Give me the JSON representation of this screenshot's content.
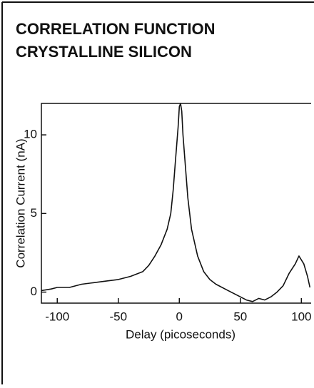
{
  "chart_data": {
    "type": "line",
    "title": [
      "CORRELATION FUNCTION",
      "CRYSTALLINE SILICON"
    ],
    "x_label": "Delay (picoseconds)",
    "y_label": "Correlation Current (nA)",
    "x": [
      -113,
      -105,
      -100,
      -90,
      -80,
      -70,
      -60,
      -50,
      -40,
      -30,
      -25,
      -20,
      -15,
      -10,
      -7,
      -5,
      -3,
      -1,
      0,
      1,
      2,
      3,
      5,
      7,
      10,
      15,
      20,
      25,
      30,
      40,
      50,
      55,
      60,
      65,
      70,
      75,
      80,
      85,
      90,
      95,
      98,
      102,
      105,
      107
    ],
    "series": [
      {
        "color": "#111111",
        "values": [
          0.1,
          0.2,
          0.3,
          0.3,
          0.5,
          0.6,
          0.7,
          0.8,
          1.0,
          1.3,
          1.7,
          2.3,
          3.0,
          4.0,
          5.0,
          6.5,
          8.5,
          10.5,
          11.8,
          12.0,
          11.5,
          10.0,
          8.0,
          6.0,
          4.0,
          2.3,
          1.3,
          0.8,
          0.5,
          0.1,
          -0.3,
          -0.5,
          -0.6,
          -0.4,
          -0.5,
          -0.3,
          0.0,
          0.4,
          1.2,
          1.8,
          2.3,
          1.8,
          1.0,
          0.3
        ]
      }
    ],
    "xlim": [
      -113,
      108
    ],
    "ylim": [
      -0.7,
      12.0
    ],
    "xticks": [
      -100,
      -50,
      0,
      50,
      100
    ],
    "yticks": [
      0,
      5,
      10
    ]
  }
}
